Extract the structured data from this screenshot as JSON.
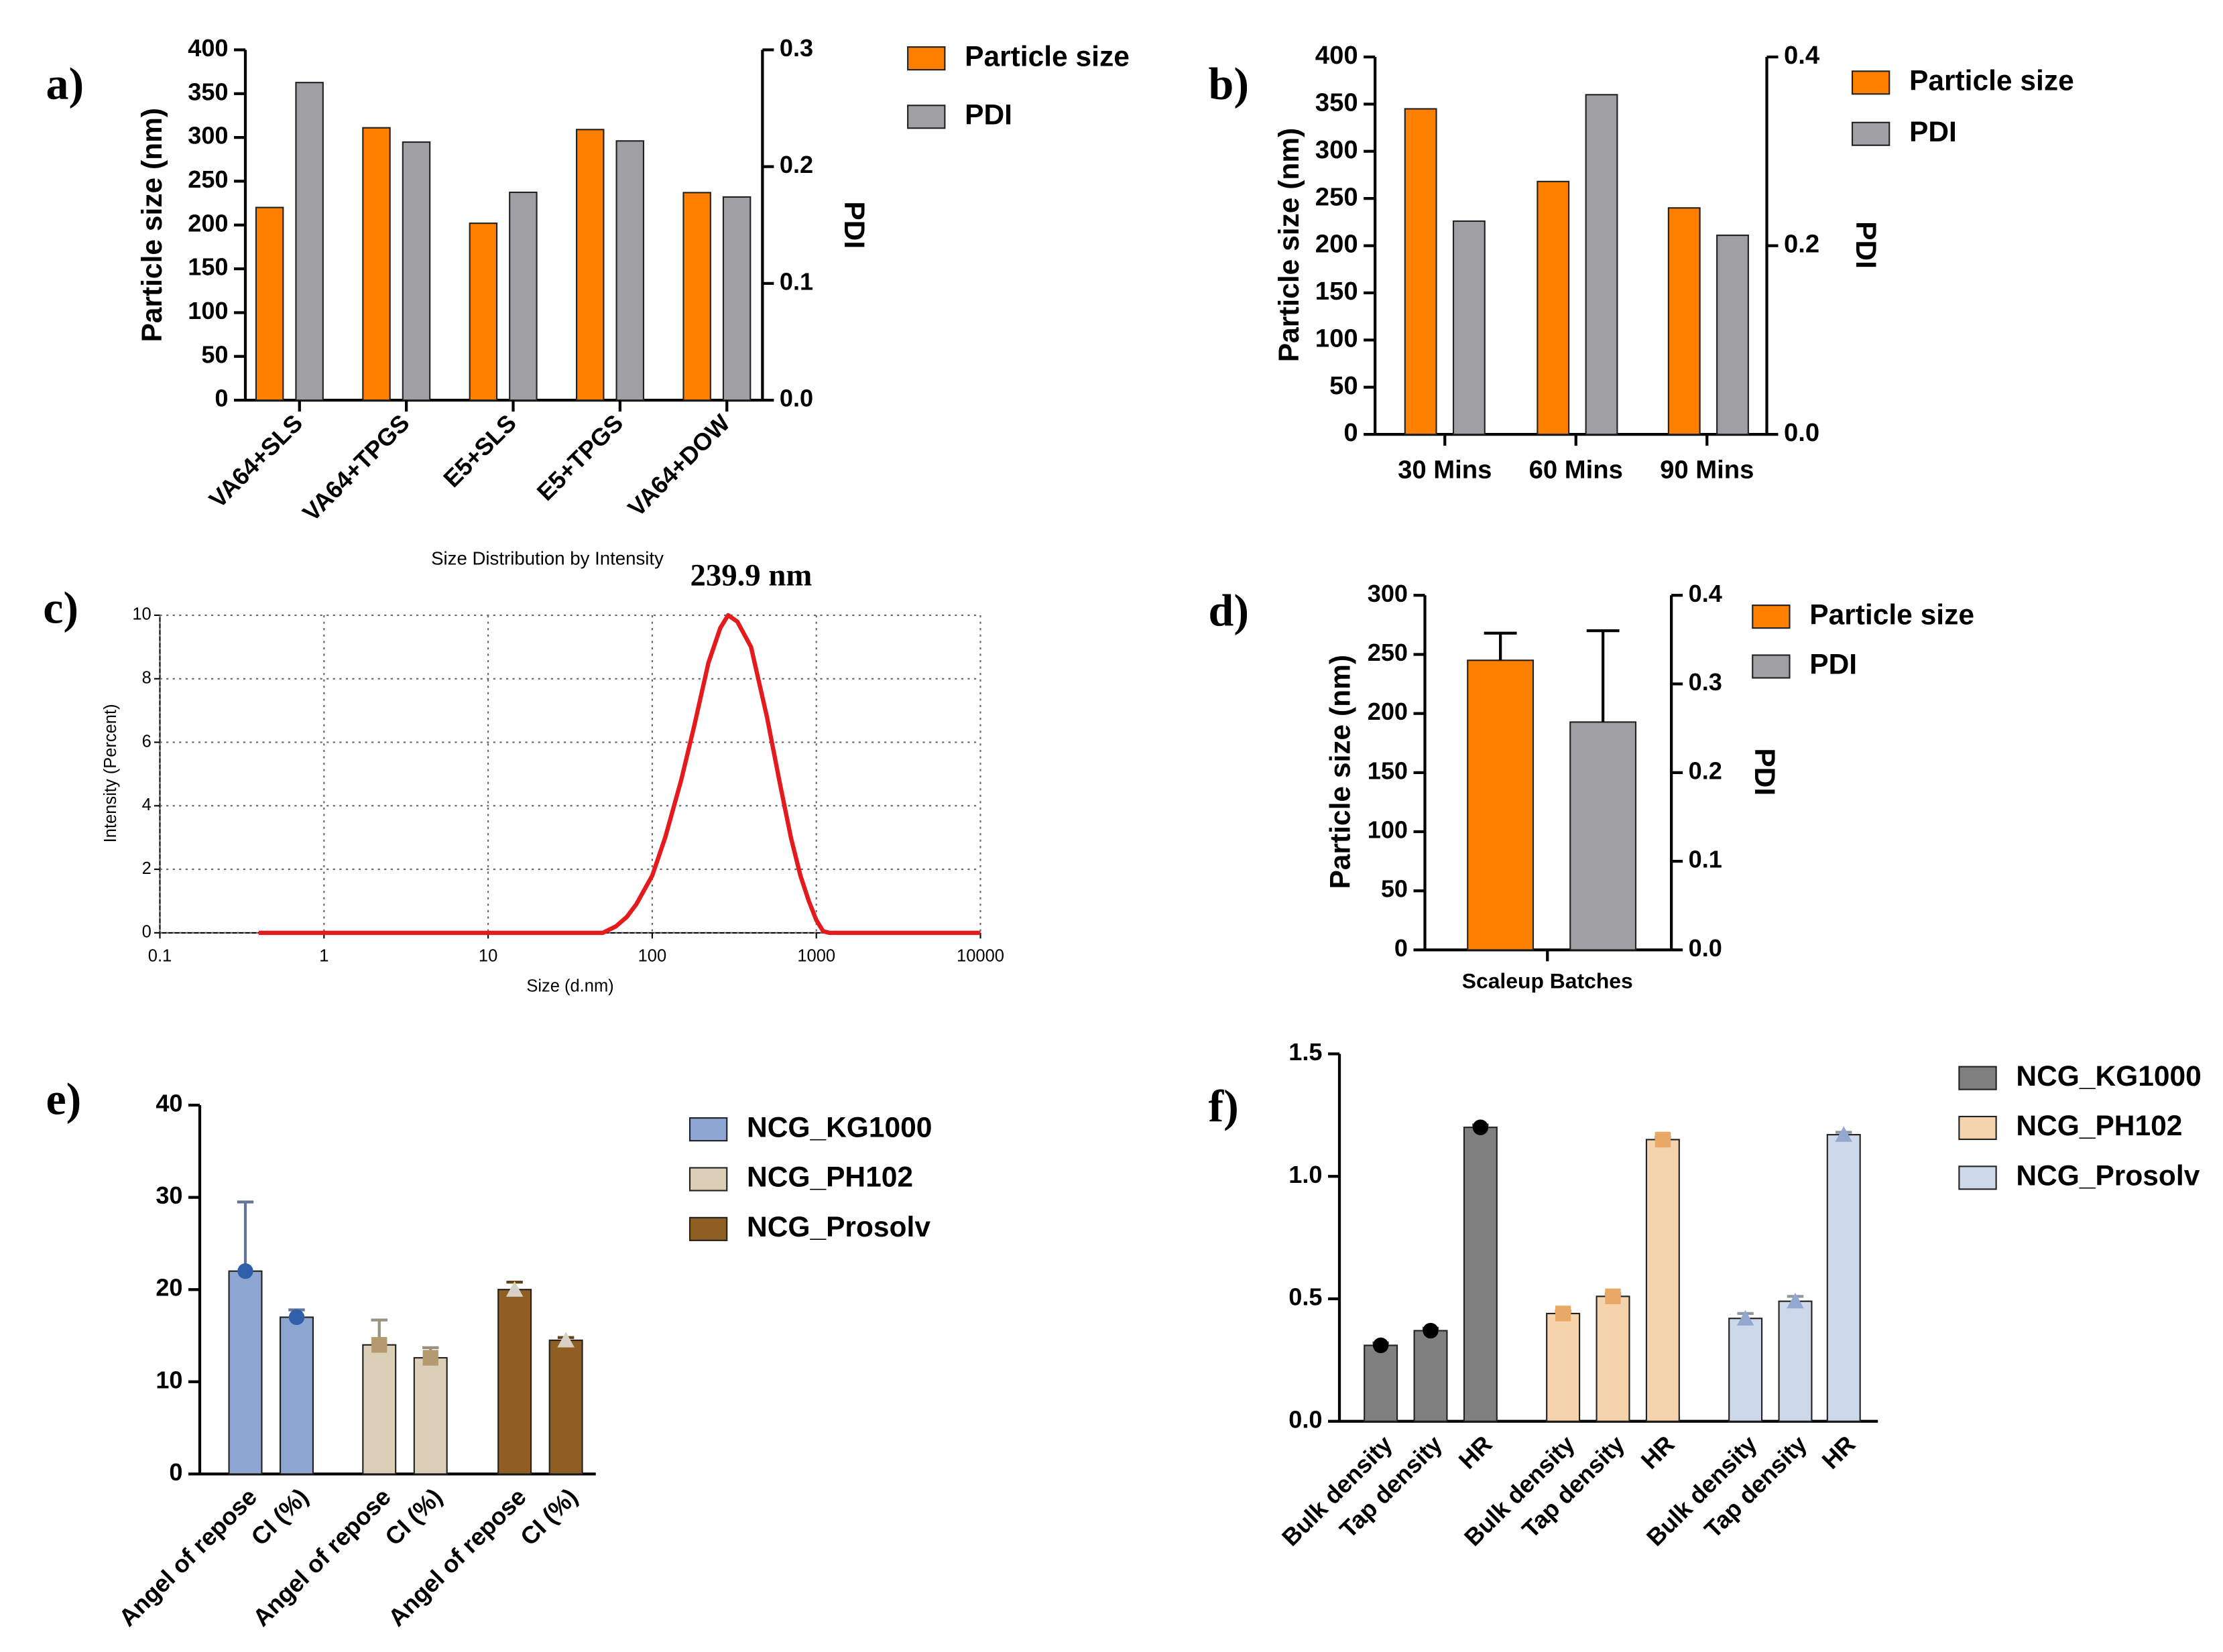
{
  "chart_data": [
    {
      "type": "bar",
      "panel": "a)",
      "ylabel": "Particle size (nm)",
      "y2label": "PDI",
      "categories": [
        "VA64+SLS",
        "VA64+TPGS",
        "E5+SLS",
        "E5+TPGS",
        "VA64+DOW"
      ],
      "series": [
        {
          "name": "Particle size",
          "color": "#ff7f00",
          "values": [
            220,
            311,
            202,
            309,
            237
          ]
        },
        {
          "name": "PDI",
          "color": "#a0a0a4",
          "axis": "y2",
          "values": [
            0.272,
            0.221,
            0.178,
            0.222,
            0.174
          ]
        }
      ],
      "ylim": [
        0,
        400
      ],
      "yticks": [
        0,
        50,
        100,
        150,
        200,
        250,
        300,
        350,
        400
      ],
      "y2lim": [
        0,
        0.3
      ],
      "y2ticks": [
        {
          "value": 0,
          "label": "0.0"
        },
        0.1,
        0.2,
        0.3
      ]
    },
    {
      "type": "bar",
      "panel": "b)",
      "ylabel": "Particle size (nm)",
      "y2label": "PDI",
      "categories": [
        "30 Mins",
        "60 Mins",
        "90 Mins"
      ],
      "series": [
        {
          "name": "Particle size",
          "color": "#ff7f00",
          "values": [
            345,
            268,
            240
          ]
        },
        {
          "name": "PDI",
          "color": "#a0a0a4",
          "axis": "y2",
          "values": [
            0.226,
            0.36,
            0.211
          ]
        }
      ],
      "ylim": [
        0,
        400
      ],
      "yticks": [
        0,
        50,
        100,
        150,
        200,
        250,
        300,
        350,
        400
      ],
      "y2lim": [
        0,
        0.4
      ],
      "y2ticks": [
        {
          "value": 0,
          "label": "0.0"
        },
        0.2,
        0.4
      ]
    },
    {
      "type": "line",
      "panel": "c)",
      "title": "Size Distribution by Intensity",
      "annotation": "239.9 nm",
      "xlabel": "Size (d.nm)",
      "ylabel": "Intensity (Percent)",
      "xscale": "log",
      "grid": true,
      "x": [
        0.4,
        10,
        50,
        60,
        70,
        80,
        100,
        120,
        150,
        180,
        220,
        260,
        290,
        330,
        400,
        500,
        600,
        700,
        800,
        900,
        1000,
        1100,
        1200,
        10000
      ],
      "series": [
        {
          "color": "#e41a1c",
          "values": [
            0,
            0,
            0,
            0.2,
            0.5,
            0.9,
            1.8,
            3.0,
            4.8,
            6.5,
            8.5,
            9.6,
            10,
            9.8,
            9.0,
            6.8,
            4.7,
            3.0,
            1.8,
            1.0,
            0.4,
            0.05,
            0,
            0
          ]
        }
      ],
      "xlim": [
        0.1,
        10000
      ],
      "xticks": [
        0.1,
        1,
        10,
        100,
        1000,
        10000
      ],
      "ylim": [
        0,
        10
      ],
      "yticks": [
        0,
        2,
        4,
        6,
        8,
        10
      ]
    },
    {
      "type": "bar",
      "panel": "d)",
      "ylabel": "Particle size (nm)",
      "y2label": "PDI",
      "categories": [
        "Scaleup Batches"
      ],
      "series": [
        {
          "name": "Particle size",
          "color": "#ff7f00",
          "values": [
            245
          ],
          "errors": [
            23
          ]
        },
        {
          "name": "PDI",
          "color": "#a0a0a4",
          "axis": "y2",
          "values": [
            0.257
          ],
          "errors": [
            0.103
          ]
        }
      ],
      "ylim": [
        0,
        300
      ],
      "yticks": [
        0,
        50,
        100,
        150,
        200,
        250,
        300
      ],
      "y2lim": [
        0,
        0.4
      ],
      "y2ticks": [
        {
          "value": 0,
          "label": "0.0"
        },
        0.1,
        0.2,
        0.3,
        0.4
      ]
    },
    {
      "type": "grouped_bar",
      "panel": "e)",
      "categories": [
        "Angel of repose",
        "CI (%)"
      ],
      "series": [
        {
          "name": "NCG_KG1000",
          "color": "#8ea7d2",
          "marker": "circle",
          "marker_color": "#2f5fa8",
          "values": [
            22,
            17
          ],
          "errors": [
            7.5,
            0.8
          ]
        },
        {
          "name": "NCG_PH102",
          "color": "#dccfb8",
          "marker": "square",
          "marker_color": "#b59a70",
          "values": [
            14,
            12.6
          ],
          "errors": [
            2.7,
            1.1
          ]
        },
        {
          "name": "NCG_Prosolv",
          "color": "#8f5e22",
          "marker": "triangle",
          "marker_color": "#d8d0c4",
          "values": [
            20,
            14.5
          ],
          "errors": [
            0.8,
            0.3
          ]
        }
      ],
      "ylim": [
        0,
        40
      ],
      "yticks": [
        0,
        10,
        20,
        30,
        40
      ]
    },
    {
      "type": "grouped_bar",
      "panel": "f)",
      "categories": [
        "Bulk density",
        "Tap density",
        "HR"
      ],
      "series": [
        {
          "name": "NCG_KG1000",
          "color": "#808080",
          "marker": "circle",
          "marker_color": "#000000",
          "values": [
            0.31,
            0.37,
            1.2
          ],
          "errors": [
            0.01,
            0.01,
            0.01
          ]
        },
        {
          "name": "NCG_PH102",
          "color": "#f5d3ad",
          "marker": "square",
          "marker_color": "#e9a866",
          "values": [
            0.44,
            0.51,
            1.15
          ],
          "errors": [
            0.01,
            0.01,
            0.01
          ]
        },
        {
          "name": "NCG_Prosolv",
          "color": "#cdd8ea",
          "marker": "triangle",
          "marker_color": "#93a8cf",
          "values": [
            0.42,
            0.49,
            1.17
          ],
          "errors": [
            0.02,
            0.02,
            0.01
          ]
        }
      ],
      "ylim": [
        0,
        1.5
      ],
      "yticks": [
        {
          "value": 0,
          "label": "0.0"
        },
        0.5,
        {
          "value": 1,
          "label": "1.0"
        },
        1.5
      ]
    }
  ]
}
